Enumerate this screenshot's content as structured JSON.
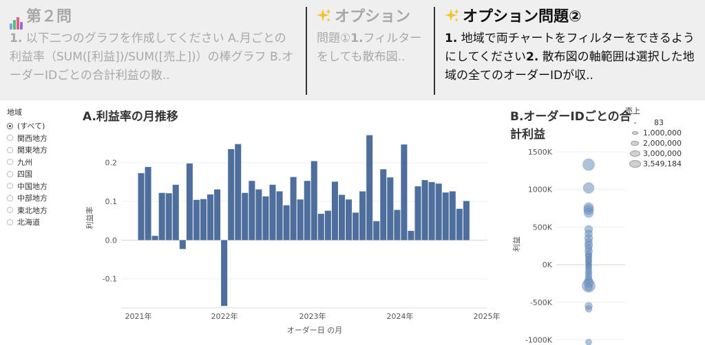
{
  "tabs": [
    {
      "title": "第２問",
      "icon": "bar-chart-icon",
      "body": [
        {
          "bold": "1.",
          "text": " 以下二つのグラフを作成してください"
        },
        {
          "bold": "",
          "text": " A.月ごとの利益率（SUM([利益])/SUM([売上])）"
        },
        {
          "bold": "",
          "text": "の棒グラフ B.オーダーIDごとの合計利益の散.."
        }
      ]
    },
    {
      "title": "オプション",
      "icon": "sparkles-icon",
      "body": [
        {
          "bold": "",
          "text": "問題①"
        },
        {
          "bold": "1.",
          "text": "フィルターをしても散布図.."
        }
      ]
    },
    {
      "title": "オプション問題②",
      "icon": "sparkles-icon",
      "body": [
        {
          "bold": "1.",
          "text": " 地域で両チャートをフィルターをできるようにしてください"
        },
        {
          "bold": "2.",
          "text": " 散布図の軸範囲は選択した地域の全てのオーダーIDが収.."
        }
      ]
    }
  ],
  "filter": {
    "title": "地域",
    "items": [
      "(すべて)",
      "関西地方",
      "関東地方",
      "九州",
      "四国",
      "中国地方",
      "中部地方",
      "東北地方",
      "北海道"
    ],
    "selected": 0
  },
  "chartA_title": "A.利益率の月推移",
  "chartB_title_line1": "B.オーダーIDごとの合",
  "chartB_title_line2": "計利益",
  "legend": {
    "title": "売上",
    "items": [
      "83",
      "1,000,000",
      "2,000,000",
      "3,000,000",
      "3,549,184"
    ]
  },
  "colors": {
    "bar": "#4e6e9e",
    "point": "#6c8fbf",
    "tab_bg": "#efefef"
  },
  "chart_data": [
    {
      "type": "bar",
      "title": "A.利益率の月推移",
      "xlabel": "オーダー日 の月",
      "ylabel": "利益率",
      "x_tick_labels": [
        "2021年",
        "2022年",
        "2023年",
        "2024年",
        "2025年"
      ],
      "y_tick_labels": [
        "-0.1",
        "0.0",
        "0.1",
        "0.2"
      ],
      "ylim": [
        -0.175,
        0.29
      ],
      "grid": true,
      "categories": [
        "2021-01",
        "2021-02",
        "2021-03",
        "2021-04",
        "2021-05",
        "2021-06",
        "2021-07",
        "2021-08",
        "2021-09",
        "2021-10",
        "2021-11",
        "2021-12",
        "2022-01",
        "2022-02",
        "2022-03",
        "2022-04",
        "2022-05",
        "2022-06",
        "2022-07",
        "2022-08",
        "2022-09",
        "2022-10",
        "2022-11",
        "2022-12",
        "2023-01",
        "2023-02",
        "2023-03",
        "2023-04",
        "2023-05",
        "2023-06",
        "2023-07",
        "2023-08",
        "2023-09",
        "2023-10",
        "2023-11",
        "2023-12",
        "2024-01",
        "2024-02",
        "2024-03",
        "2024-04",
        "2024-05",
        "2024-06",
        "2024-07",
        "2024-08",
        "2024-09",
        "2024-10",
        "2024-11",
        "2024-12"
      ],
      "values": [
        0.173,
        0.189,
        0.011,
        0.122,
        0.121,
        0.143,
        -0.023,
        0.198,
        0.104,
        0.106,
        0.118,
        0.131,
        -0.17,
        0.235,
        0.248,
        0.122,
        0.153,
        0.131,
        0.113,
        0.143,
        0.126,
        0.09,
        0.163,
        0.105,
        0.153,
        0.204,
        0.068,
        0.076,
        0.151,
        0.117,
        0.105,
        0.071,
        0.126,
        0.271,
        0.049,
        0.183,
        0.162,
        0.078,
        0.247,
        0.024,
        0.139,
        0.155,
        0.15,
        0.146,
        0.123,
        0.126,
        0.081,
        0.101
      ]
    },
    {
      "type": "scatter",
      "title": "B.オーダーIDごとの合計利益",
      "ylabel": "利益",
      "y_tick_labels": [
        "-1000K",
        "-500K",
        "0K",
        "500K",
        "1000K",
        "1500K"
      ],
      "ylim": [
        -1050000,
        1600000
      ],
      "grid": true,
      "size_legend": "売上",
      "points": [
        {
          "y": 1330000,
          "size": 2700000
        },
        {
          "y": 1020000,
          "size": 2100000
        },
        {
          "y": 760000,
          "size": 1600000
        },
        {
          "y": 730000,
          "size": 1700000
        },
        {
          "y": 690000,
          "size": 1500000
        },
        {
          "y": 470000,
          "size": 900000
        },
        {
          "y": 410000,
          "size": 800000
        },
        {
          "y": 350000,
          "size": 1000000
        },
        {
          "y": 300000,
          "size": 700000
        },
        {
          "y": 260000,
          "size": 900000
        },
        {
          "y": 220000,
          "size": 600000
        },
        {
          "y": 180000,
          "size": 800000
        },
        {
          "y": 140000,
          "size": 500000
        },
        {
          "y": 110000,
          "size": 600000
        },
        {
          "y": 80000,
          "size": 400000
        },
        {
          "y": 50000,
          "size": 500000
        },
        {
          "y": 30000,
          "size": 300000
        },
        {
          "y": 10000,
          "size": 400000
        },
        {
          "y": -10000,
          "size": 350000
        },
        {
          "y": -40000,
          "size": 500000
        },
        {
          "y": -70000,
          "size": 300000
        },
        {
          "y": -100000,
          "size": 600000
        },
        {
          "y": -130000,
          "size": 400000
        },
        {
          "y": -160000,
          "size": 500000
        },
        {
          "y": -200000,
          "size": 700000
        },
        {
          "y": -240000,
          "size": 1500000
        },
        {
          "y": -280000,
          "size": 3549184
        },
        {
          "y": -300000,
          "size": 800000
        },
        {
          "y": -550000,
          "size": 700000
        },
        {
          "y": -590000,
          "size": 500000
        },
        {
          "y": -1030000,
          "size": 400000
        },
        {
          "y": 0,
          "size": 83
        },
        {
          "y": 60000,
          "size": 200000
        },
        {
          "y": -20000,
          "size": 150000
        },
        {
          "y": 120000,
          "size": 250000
        }
      ]
    }
  ]
}
